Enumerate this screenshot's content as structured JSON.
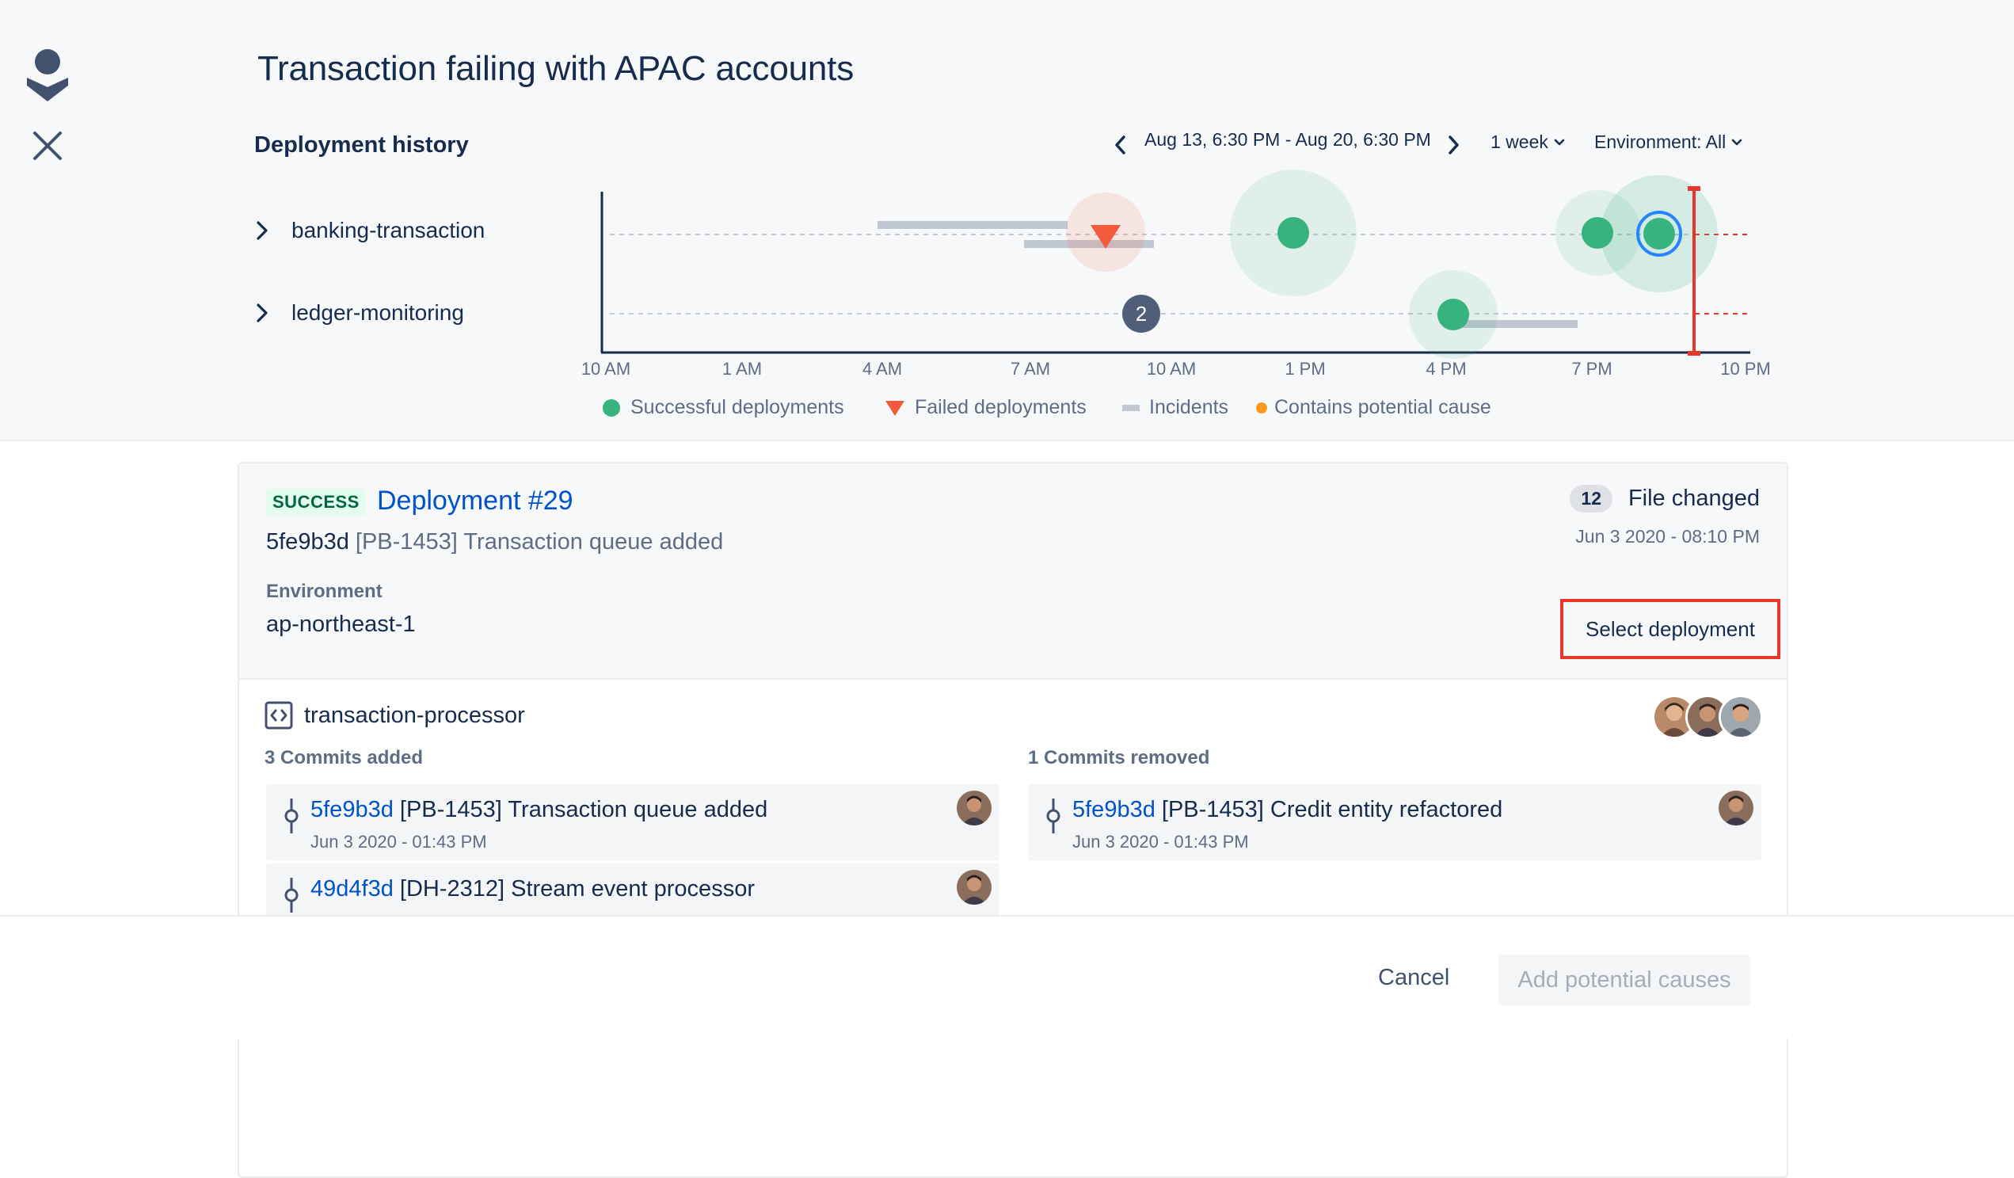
{
  "page": {
    "title": "Transaction failing with APAC accounts"
  },
  "history": {
    "title": "Deployment history",
    "date_range": "Aug 13, 6:30 PM - Aug 20, 6:30 PM",
    "period": "1 week",
    "environment": "Environment: All",
    "rows": [
      "banking-transaction",
      "ledger-monitoring"
    ],
    "ticks": [
      "10 AM",
      "1 AM",
      "4 AM",
      "7 AM",
      "10 AM",
      "1 PM",
      "4 PM",
      "7 PM",
      "10 PM"
    ],
    "cluster_count": "2",
    "legend": {
      "success": "Successful deployments",
      "failed": "Failed deployments",
      "incidents": "Incidents",
      "cause": "Contains potential cause"
    },
    "colors": {
      "success": "#36b37e",
      "failed": "#f15a3b",
      "incident": "#c1c7d0",
      "cause": "#ff991f",
      "marker": "#e8362a",
      "selected": "#2684ff"
    }
  },
  "deployment": {
    "status": "SUCCESS",
    "title": "Deployment #29",
    "commit_hash": "5fe9b3d",
    "commit_message": "[PB-1453] Transaction queue added",
    "files_count": "12",
    "files_label": "File changed",
    "date": "Jun 3 2020 - 08:10 PM",
    "environment_label": "Environment",
    "environment_value": "ap-northeast-1",
    "select_label": "Select deployment"
  },
  "repo": {
    "name": "transaction-processor",
    "added_label": "3 Commits added",
    "removed_label": "1 Commits removed",
    "added": [
      {
        "hash": "5fe9b3d",
        "message": "[PB-1453] Transaction queue added",
        "date": "Jun 3 2020 - 01:43 PM"
      },
      {
        "hash": "49d4f3d",
        "message": "[DH-2312] Stream event processor"
      }
    ],
    "removed": [
      {
        "hash": "5fe9b3d",
        "message": "[PB-1453] Credit entity refactored",
        "date": "Jun 3 2020 - 01:43 PM"
      }
    ]
  },
  "footer": {
    "cancel": "Cancel",
    "add": "Add potential causes"
  }
}
